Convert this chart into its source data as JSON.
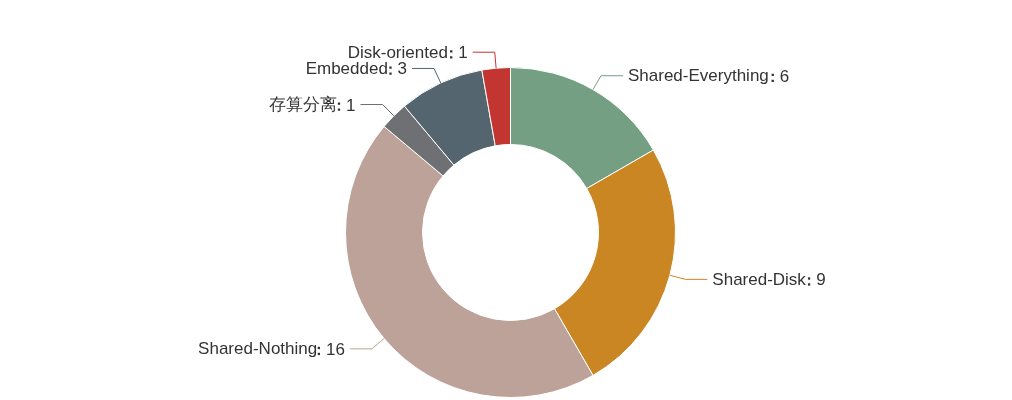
{
  "chart_data": {
    "type": "donut",
    "categories": [
      "Shared-Everything",
      "Shared-Disk",
      "Shared-Nothing",
      "存算分离",
      "Embedded",
      "Disk-oriented"
    ],
    "values": [
      6,
      9,
      16,
      1,
      3,
      1
    ],
    "colors": [
      "#749f83",
      "#ca8622",
      "#bda29a",
      "#6e7074",
      "#546570",
      "#c23531"
    ],
    "data_labels": true
  }
}
